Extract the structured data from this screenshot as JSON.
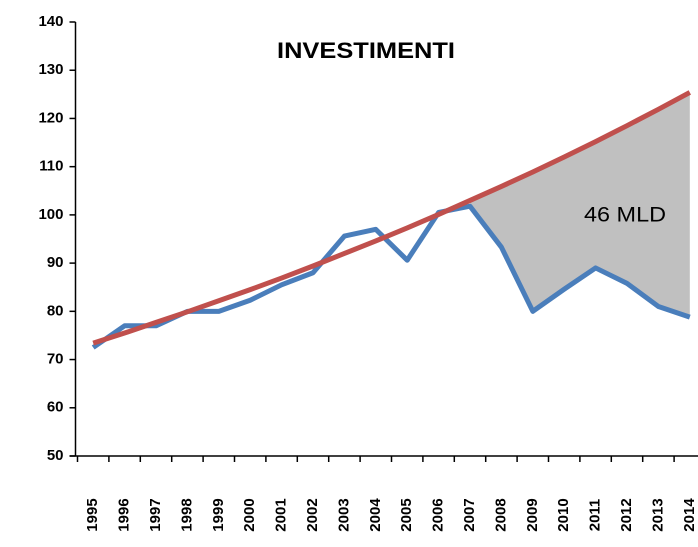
{
  "chart_data": {
    "type": "line",
    "title": "INVESTIMENTI",
    "annotation": "46 MLD",
    "categories": [
      "1995",
      "1996",
      "1997",
      "1998",
      "1999",
      "2000",
      "2001",
      "2002",
      "2003",
      "2004",
      "2005",
      "2006",
      "2007",
      "2008",
      "2009",
      "2010",
      "2011",
      "2012",
      "2013",
      "2014"
    ],
    "series": [
      {
        "color": "#4a7ebb",
        "values": [
          72.5,
          77,
          77,
          80,
          80,
          82.3,
          85.5,
          88,
          95.6,
          97,
          90.6,
          100.5,
          101.8,
          93.3,
          80,
          84.6,
          89,
          85.8,
          81,
          78.8
        ]
      },
      {
        "color": "#c0504d",
        "values": [
          73.4,
          75.5,
          77.7,
          79.9,
          82.2,
          84.5,
          86.9,
          89.4,
          92,
          94.6,
          97.3,
          100.1,
          103,
          105.9,
          108.9,
          112,
          115.2,
          118.5,
          121.9,
          125.4
        ]
      }
    ],
    "fill_between_color": "#c0c0c0",
    "ylim": [
      50,
      140
    ],
    "yticks": [
      50,
      60,
      70,
      80,
      90,
      100,
      110,
      120,
      130,
      140
    ]
  }
}
